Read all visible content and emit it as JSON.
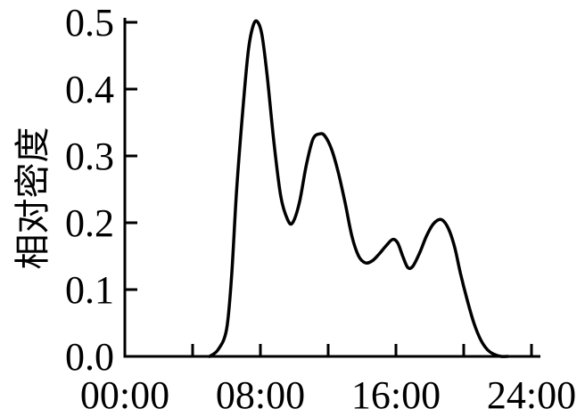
{
  "chart_data": {
    "type": "line",
    "title": "",
    "xlabel": "",
    "ylabel": "相对密度",
    "x_ticks": [
      "00:00",
      "08:00",
      "16:00",
      "24:00"
    ],
    "y_ticks": [
      "0.0",
      "0.1",
      "0.2",
      "0.3",
      "0.4",
      "0.5"
    ],
    "xlim": [
      0,
      24
    ],
    "ylim": [
      0,
      0.5
    ],
    "grid": false,
    "colors": {
      "line": "#000000",
      "axis": "#000000"
    },
    "series": [
      {
        "x": [
          5.0,
          5.5,
          6.0,
          6.3,
          6.6,
          7.0,
          7.3,
          7.6,
          7.85,
          8.1,
          8.4,
          8.8,
          9.2,
          9.6,
          9.9,
          10.3,
          10.7,
          11.1,
          11.5,
          11.8,
          12.2,
          12.6,
          13.0,
          13.4,
          13.8,
          14.2,
          14.6,
          15.0,
          15.4,
          15.8,
          16.1,
          16.4,
          16.7,
          17.0,
          17.4,
          17.8,
          18.2,
          18.6,
          18.9,
          19.2,
          19.5,
          19.8,
          20.2,
          20.6,
          21.0,
          21.4,
          21.8,
          22.2,
          22.6
        ],
        "y": [
          0.0,
          0.01,
          0.04,
          0.12,
          0.25,
          0.38,
          0.46,
          0.497,
          0.5,
          0.48,
          0.42,
          0.32,
          0.24,
          0.205,
          0.2,
          0.23,
          0.285,
          0.325,
          0.333,
          0.33,
          0.31,
          0.275,
          0.23,
          0.18,
          0.15,
          0.14,
          0.143,
          0.153,
          0.165,
          0.175,
          0.17,
          0.15,
          0.133,
          0.135,
          0.155,
          0.18,
          0.198,
          0.205,
          0.2,
          0.185,
          0.16,
          0.125,
          0.085,
          0.05,
          0.025,
          0.01,
          0.003,
          0.0,
          0.0
        ]
      }
    ]
  }
}
